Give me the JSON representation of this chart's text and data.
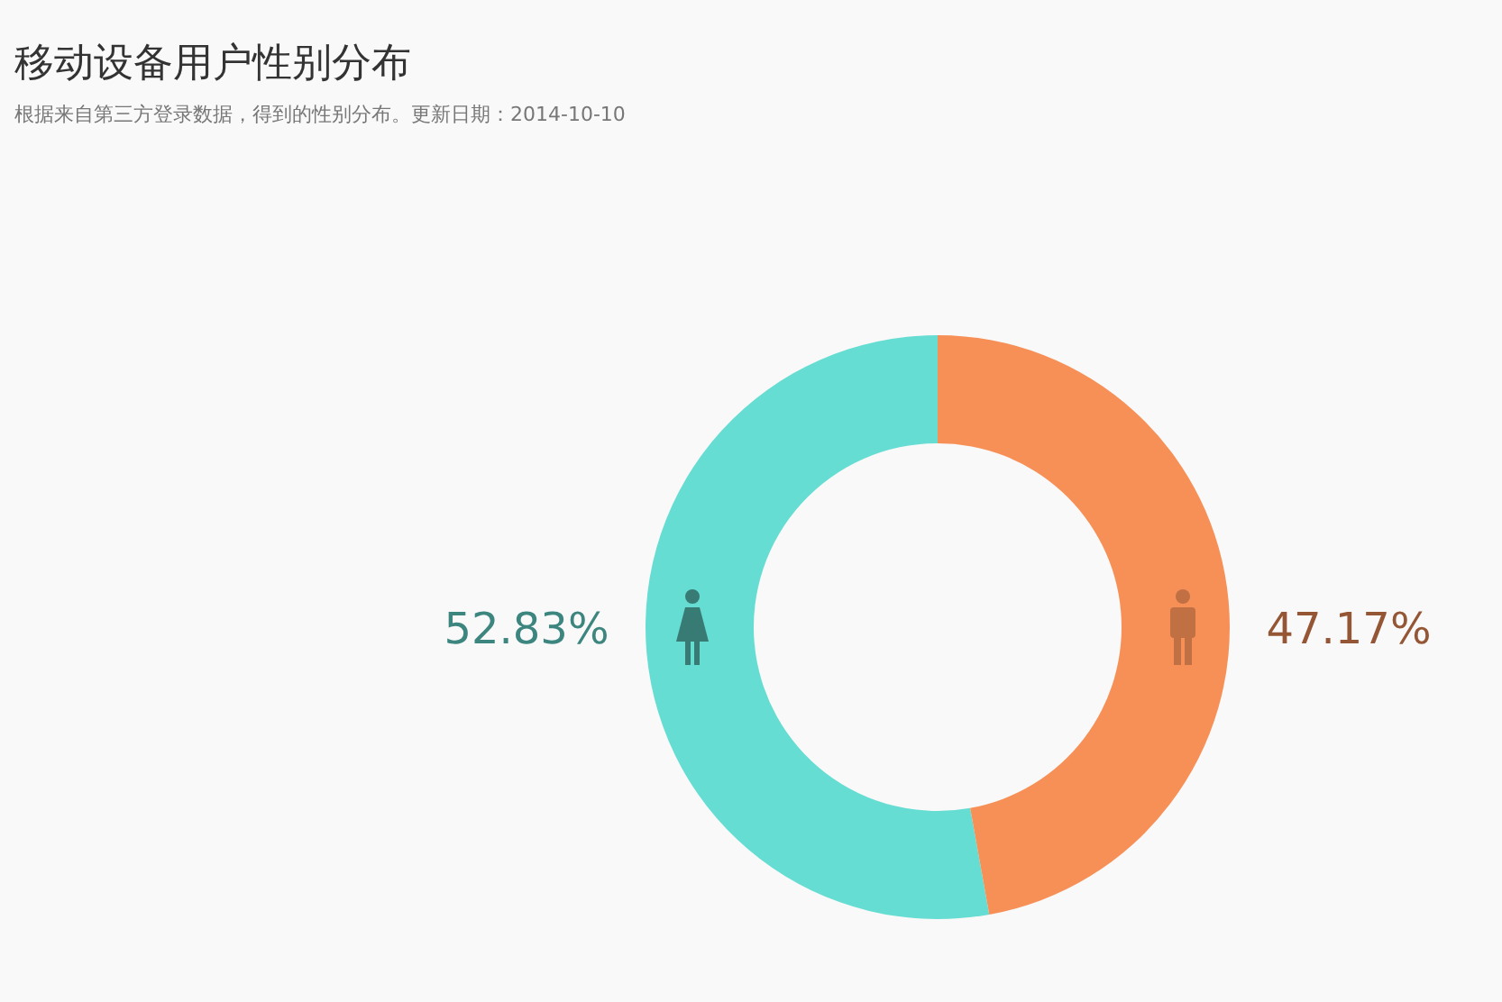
{
  "chart_data": {
    "type": "donut",
    "title": "移动设备用户性别分布",
    "subtitle": "根据来自第三方登录数据，得到的性别分布。更新日期：2014-10-10",
    "categories": [
      null,
      null
    ],
    "values": [
      52.83,
      47.17
    ],
    "colors": [
      "#66ddd3",
      "#f79057"
    ],
    "value_labels": [
      "52.83%",
      "47.17%"
    ]
  }
}
